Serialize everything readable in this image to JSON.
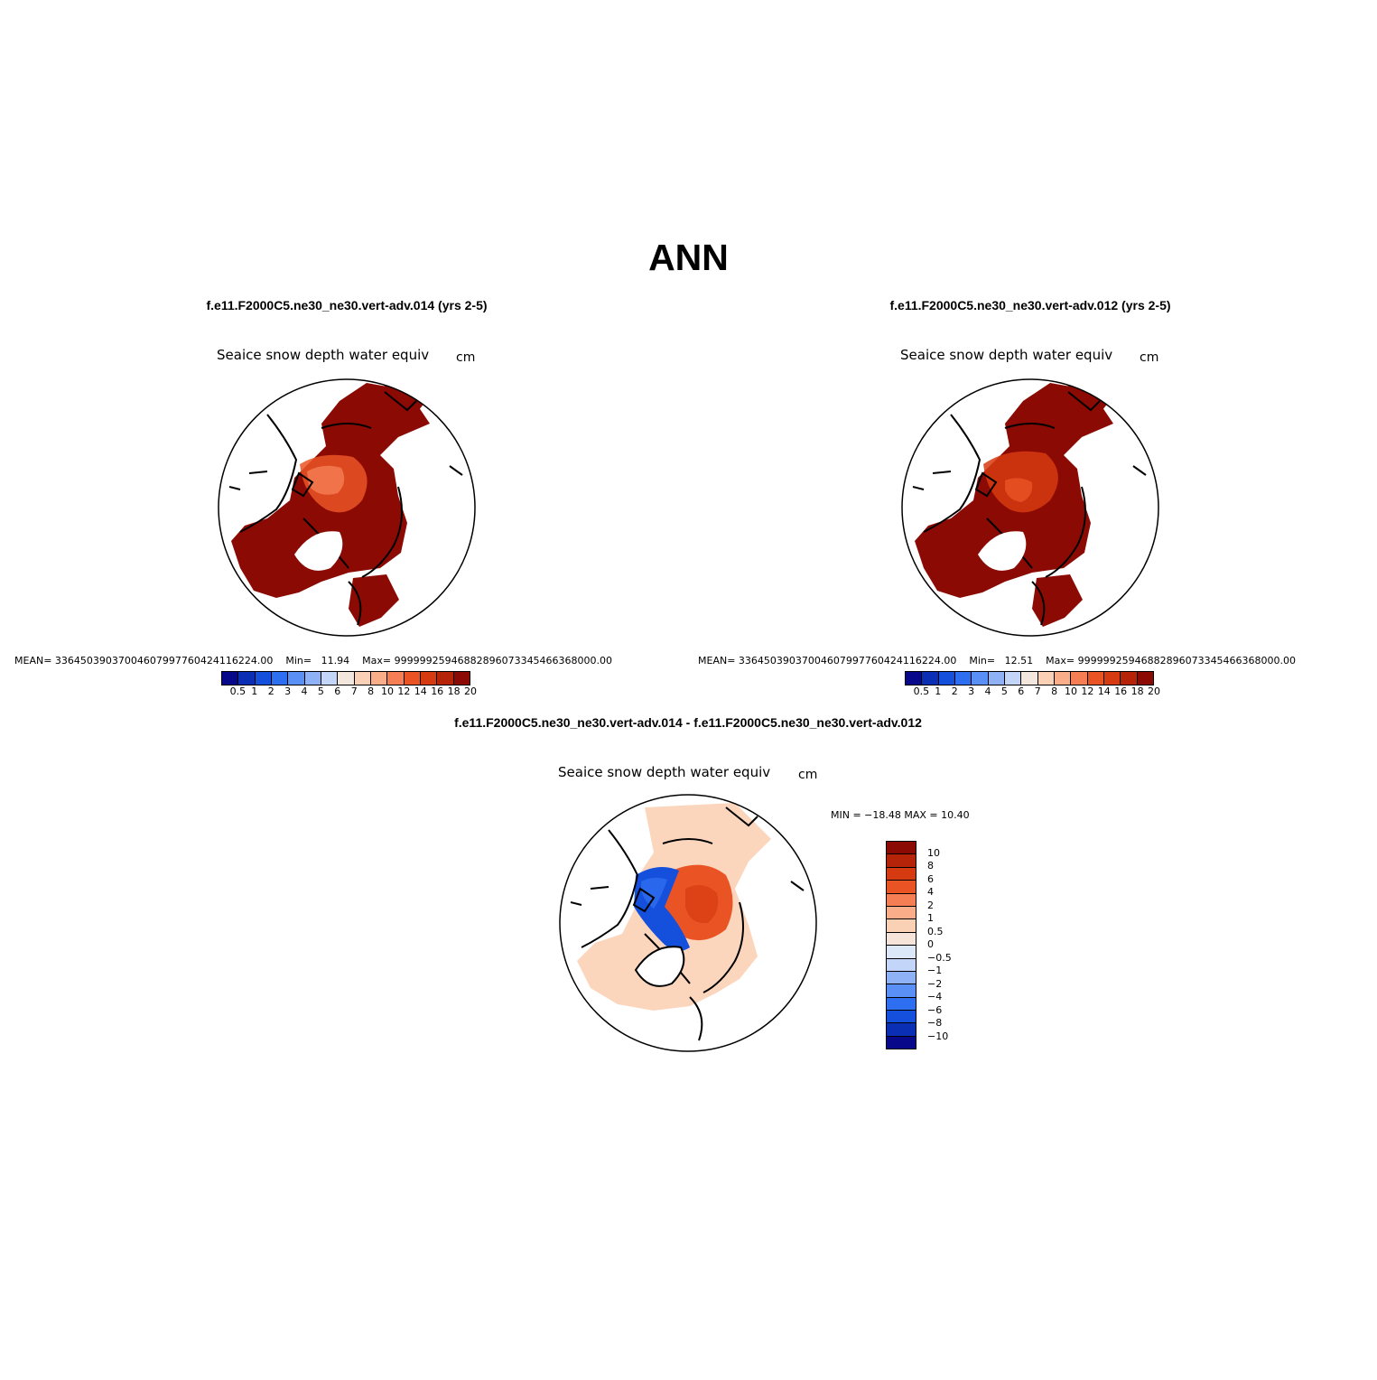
{
  "title": "ANN",
  "panels": [
    {
      "case_title": "f.e11.F2000C5.ne30_ne30.vert-adv.014 (yrs 2-5)",
      "variable": "Seaice snow depth water equiv",
      "units": "cm",
      "mean_label": "MEAN=",
      "mean": "33645039037004607997760424116224.00",
      "min_label": "Min=",
      "min": "11.94",
      "max_label": "Max=",
      "max": "99999925946882896073345466368000.00"
    },
    {
      "case_title": "f.e11.F2000C5.ne30_ne30.vert-adv.012 (yrs 2-5)",
      "variable": "Seaice snow depth water equiv",
      "units": "cm",
      "mean_label": "MEAN=",
      "mean": "33645039037004607997760424116224.00",
      "min_label": "Min=",
      "min": "12.51",
      "max_label": "Max=",
      "max": "99999925946882896073345466368000.00"
    }
  ],
  "diff_panel": {
    "case_title": "f.e11.F2000C5.ne30_ne30.vert-adv.014 - f.e11.F2000C5.ne30_ne30.vert-adv.012",
    "variable": "Seaice snow depth water equiv",
    "units": "cm",
    "minmax_text": "MIN = −18.48  MAX =   10.40"
  },
  "colorbar_abs": {
    "labels": [
      "0.5",
      "1",
      "2",
      "3",
      "4",
      "5",
      "6",
      "7",
      "8",
      "10",
      "12",
      "14",
      "16",
      "18",
      "20"
    ],
    "colors": [
      "#08088a",
      "#0a2fb4",
      "#1450dc",
      "#2e6ef0",
      "#5a8ff5",
      "#8fb2f7",
      "#c3d6fa",
      "#f3e6dc",
      "#fbd1b6",
      "#f9ad88",
      "#f57e55",
      "#ea5425",
      "#d63a10",
      "#b52308",
      "#8b0a03"
    ]
  },
  "colorbar_diff": {
    "labels": [
      "10",
      "8",
      "6",
      "4",
      "2",
      "1",
      "0.5",
      "0",
      "−0.5",
      "−1",
      "−2",
      "−4",
      "−6",
      "−8",
      "−10"
    ],
    "colors": [
      "#8b0a03",
      "#b52308",
      "#d63a10",
      "#ea5425",
      "#f57e55",
      "#f9ad88",
      "#fbd1b6",
      "#f6e4da",
      "#dce8f8",
      "#c3d6fa",
      "#8fb2f7",
      "#5a8ff5",
      "#2e6ef0",
      "#1450dc",
      "#0a2fb4",
      "#08088a"
    ]
  }
}
